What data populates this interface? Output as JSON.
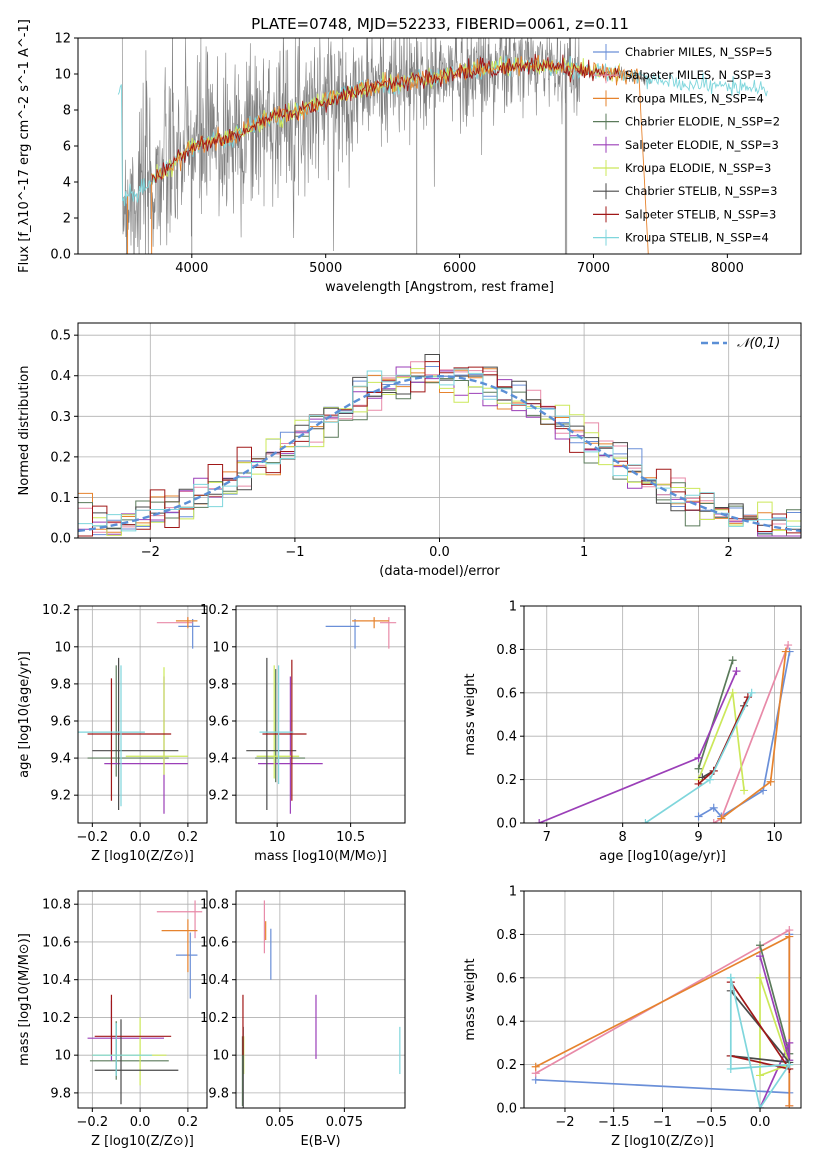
{
  "title": "PLATE=0748, MJD=52233, FIBERID=0061, z=0.11",
  "colors": {
    "chabrier_miles": "#6a8fd8",
    "salpeter_miles": "#e88aa8",
    "kroupa_miles": "#e6832e",
    "chabrier_elodie": "#5a7a5a",
    "salpeter_elodie": "#9b3fb8",
    "kroupa_elodie": "#cce85a",
    "chabrier_stelib": "#4a4a4a",
    "salpeter_stelib": "#a01818",
    "kroupa_stelib": "#7fd6dc",
    "data": "#7f7f7f"
  },
  "chart_data": [
    {
      "id": "spectrum",
      "type": "line",
      "xlabel": "wavelength [Angstrom, rest frame]",
      "ylabel": "Flux [f_λ10^-17 erg cm^-2 s^-1 A^-1]",
      "xlim": [
        3150,
        8550
      ],
      "ylim": [
        0,
        12
      ],
      "xticks": [
        4000,
        5000,
        6000,
        7000,
        8000
      ],
      "yticks": [
        0,
        2,
        4,
        6,
        8,
        10,
        12
      ],
      "grid": false,
      "legend_position": "top-right",
      "legend": [
        "Chabrier MILES, N_SSP=5",
        "Salpeter MILES, N_SSP=3",
        "Kroupa MILES, N_SSP=4",
        "Chabrier ELODIE, N_SSP=2",
        "Salpeter ELODIE, N_SSP=3",
        "Kroupa ELODIE, N_SSP=3",
        "Chabrier STELIB, N_SSP=3",
        "Salpeter STELIB, N_SSP=3",
        "Kroupa STELIB, N_SSP=4"
      ],
      "continuum": [
        [
          3480,
          3.1
        ],
        [
          3600,
          3.4
        ],
        [
          3800,
          4.6
        ],
        [
          3900,
          5.3
        ],
        [
          4000,
          5.9
        ],
        [
          4100,
          6.2
        ],
        [
          4300,
          6.5
        ],
        [
          4500,
          7.3
        ],
        [
          4700,
          7.8
        ],
        [
          4850,
          8.0
        ],
        [
          5000,
          8.6
        ],
        [
          5200,
          9.0
        ],
        [
          5400,
          9.4
        ],
        [
          5600,
          9.6
        ],
        [
          5800,
          9.8
        ],
        [
          6000,
          10.1
        ],
        [
          6200,
          10.3
        ],
        [
          6400,
          10.4
        ],
        [
          6600,
          10.6
        ],
        [
          6800,
          10.3
        ],
        [
          7000,
          10.1
        ],
        [
          7200,
          10.0
        ],
        [
          7400,
          9.7
        ],
        [
          7600,
          9.5
        ],
        [
          7800,
          9.4
        ],
        [
          8000,
          9.3
        ],
        [
          8300,
          9.2
        ]
      ]
    },
    {
      "id": "residuals",
      "type": "histogram",
      "xlabel": "(data-model)/error",
      "ylabel": "Normed distribution",
      "xlim": [
        -2.5,
        2.5
      ],
      "ylim": [
        0,
        0.53
      ],
      "xticks": [
        -2,
        -1,
        0,
        1,
        2
      ],
      "yticks": [
        0.0,
        0.1,
        0.2,
        0.3,
        0.4,
        0.5
      ],
      "grid": true,
      "legend_position": "top-right",
      "legend": [
        "𝒩(0,1)"
      ],
      "bin_width": 0.1
    },
    {
      "id": "age_vs_Z",
      "type": "errorbar",
      "xlabel": "Z [log10(Z/Z⊙)]",
      "ylabel": "age [log10(age/yr)]",
      "xlim": [
        -0.26,
        0.28
      ],
      "ylim": [
        9.05,
        10.22
      ],
      "xticks": [
        -0.2,
        0.0,
        0.2
      ],
      "yticks": [
        9.2,
        9.4,
        9.6,
        9.8,
        10.0,
        10.2
      ],
      "grid": true,
      "points": [
        {
          "model": "chabrier_miles",
          "x": 0.22,
          "xerr": [
            0.06,
            0.03
          ],
          "y": 10.11,
          "yerr": [
            0.12,
            0.04
          ]
        },
        {
          "model": "salpeter_miles",
          "x": 0.2,
          "xerr": [
            0.13,
            0.02
          ],
          "y": 10.13,
          "yerr": [
            0.02,
            0.03
          ]
        },
        {
          "model": "kroupa_miles",
          "x": 0.2,
          "xerr": [
            0.05,
            0.04
          ],
          "y": 10.14,
          "yerr": [
            0.04,
            0.02
          ]
        },
        {
          "model": "chabrier_elodie",
          "x": -0.1,
          "xerr": [
            0.12,
            0.22
          ],
          "y": 9.4,
          "yerr": [
            0.1,
            0.5
          ]
        },
        {
          "model": "salpeter_elodie",
          "x": 0.1,
          "xerr": [
            0.25,
            0.1
          ],
          "y": 9.37,
          "yerr": [
            0.27,
            0.47
          ]
        },
        {
          "model": "kroupa_elodie",
          "x": 0.1,
          "xerr": [
            0.16,
            0.1
          ],
          "y": 9.41,
          "yerr": [
            0.1,
            0.48
          ]
        },
        {
          "model": "chabrier_stelib",
          "x": -0.09,
          "xerr": [
            0.11,
            0.25
          ],
          "y": 9.44,
          "yerr": [
            0.32,
            0.5
          ]
        },
        {
          "model": "salpeter_stelib",
          "x": -0.12,
          "xerr": [
            0.1,
            0.25
          ],
          "y": 9.53,
          "yerr": [
            0.36,
            0.3
          ]
        },
        {
          "model": "kroupa_stelib",
          "x": -0.08,
          "xerr": [
            0.18,
            0.1
          ],
          "y": 9.54,
          "yerr": [
            0.4,
            0.36
          ]
        }
      ]
    },
    {
      "id": "age_vs_mass",
      "type": "errorbar",
      "xlabel": "mass [log10(M/M⊙)]",
      "ylabel": "",
      "xlim": [
        9.72,
        10.87
      ],
      "ylim": [
        9.05,
        10.22
      ],
      "xticks": [
        10.0,
        10.5
      ],
      "yticks": [
        9.2,
        9.4,
        9.6,
        9.8,
        10.0,
        10.2
      ],
      "grid": true,
      "points": [
        {
          "model": "chabrier_miles",
          "x": 10.53,
          "xerr": [
            0.2,
            0.03
          ],
          "y": 10.11,
          "yerr": [
            0.12,
            0.04
          ]
        },
        {
          "model": "salpeter_miles",
          "x": 10.76,
          "xerr": [
            0.06,
            0.05
          ],
          "y": 10.13,
          "yerr": [
            0.14,
            0.03
          ]
        },
        {
          "model": "kroupa_miles",
          "x": 10.66,
          "xerr": [
            0.15,
            0.1
          ],
          "y": 10.14,
          "yerr": [
            0.04,
            0.02
          ]
        },
        {
          "model": "chabrier_elodie",
          "x": 9.99,
          "xerr": [
            0.14,
            0.2
          ],
          "y": 9.4,
          "yerr": [
            0.13,
            0.48
          ]
        },
        {
          "model": "salpeter_elodie",
          "x": 10.09,
          "xerr": [
            0.22,
            0.22
          ],
          "y": 9.37,
          "yerr": [
            0.27,
            0.47
          ]
        },
        {
          "model": "kroupa_elodie",
          "x": 9.98,
          "xerr": [
            0.12,
            0.17
          ],
          "y": 9.41,
          "yerr": [
            0.12,
            0.49
          ]
        },
        {
          "model": "chabrier_stelib",
          "x": 9.93,
          "xerr": [
            0.14,
            0.2
          ],
          "y": 9.44,
          "yerr": [
            0.32,
            0.5
          ]
        },
        {
          "model": "salpeter_stelib",
          "x": 10.1,
          "xerr": [
            0.2,
            0.1
          ],
          "y": 9.53,
          "yerr": [
            0.36,
            0.4
          ]
        },
        {
          "model": "kroupa_stelib",
          "x": 10.01,
          "xerr": [
            0.13,
            0.1
          ],
          "y": 9.54,
          "yerr": [
            0.28,
            0.36
          ]
        }
      ]
    },
    {
      "id": "weight_vs_age",
      "type": "line",
      "xlabel": "age [log10(age/yr)]",
      "ylabel": "mass weight",
      "xlim": [
        6.7,
        10.35
      ],
      "ylim": [
        0,
        1.0
      ],
      "xticks": [
        7,
        8,
        9,
        10
      ],
      "yticks": [
        0.0,
        0.2,
        0.4,
        0.6,
        0.8,
        1.0
      ],
      "grid": true,
      "series": [
        {
          "model": "chabrier_miles",
          "x": [
            9.0,
            9.2,
            9.3,
            9.85,
            10.2
          ],
          "y": [
            0.03,
            0.07,
            0.03,
            0.15,
            0.79
          ]
        },
        {
          "model": "salpeter_miles",
          "x": [
            9.2,
            9.3,
            10.18
          ],
          "y": [
            0.0,
            0.02,
            0.82
          ]
        },
        {
          "model": "kroupa_miles",
          "x": [
            9.3,
            9.95,
            10.15
          ],
          "y": [
            0.02,
            0.19,
            0.79
          ]
        },
        {
          "model": "chabrier_elodie",
          "x": [
            9.0,
            9.45
          ],
          "y": [
            0.25,
            0.75
          ]
        },
        {
          "model": "salpeter_elodie",
          "x": [
            6.9,
            9.0,
            9.5
          ],
          "y": [
            0.0,
            0.3,
            0.7
          ]
        },
        {
          "model": "kroupa_elodie",
          "x": [
            9.0,
            9.45,
            9.6
          ],
          "y": [
            0.2,
            0.6,
            0.15
          ]
        },
        {
          "model": "chabrier_stelib",
          "x": [
            9.05,
            9.2,
            9.6
          ],
          "y": [
            0.21,
            0.24,
            0.54
          ]
        },
        {
          "model": "salpeter_stelib",
          "x": [
            9.0,
            9.2,
            9.65
          ],
          "y": [
            0.18,
            0.24,
            0.58
          ]
        },
        {
          "model": "kroupa_stelib",
          "x": [
            8.3,
            9.15,
            9.7
          ],
          "y": [
            0.0,
            0.2,
            0.6
          ]
        }
      ]
    },
    {
      "id": "mass_vs_Z",
      "type": "errorbar",
      "xlabel": "Z [log10(Z/Z⊙)]",
      "ylabel": "mass [log10(M/M⊙)]",
      "xlim": [
        -0.26,
        0.28
      ],
      "ylim": [
        9.72,
        10.87
      ],
      "xticks": [
        -0.2,
        0.0,
        0.2
      ],
      "yticks": [
        9.8,
        10.0,
        10.2,
        10.4,
        10.6,
        10.8
      ],
      "grid": true,
      "points": [
        {
          "model": "chabrier_miles",
          "x": 0.21,
          "xerr": [
            0.06,
            0.03
          ],
          "y": 10.53,
          "yerr": [
            0.23,
            0.12
          ]
        },
        {
          "model": "salpeter_miles",
          "x": 0.23,
          "xerr": [
            0.16,
            0.03
          ],
          "y": 10.76,
          "yerr": [
            0.14,
            0.06
          ]
        },
        {
          "model": "kroupa_miles",
          "x": 0.2,
          "xerr": [
            0.11,
            0.04
          ],
          "y": 10.66,
          "yerr": [
            0.22,
            0.06
          ]
        },
        {
          "model": "chabrier_elodie",
          "x": -0.1,
          "xerr": [
            0.11,
            0.22
          ],
          "y": 9.97,
          "yerr": [
            0.1,
            0.21
          ]
        },
        {
          "model": "salpeter_elodie",
          "x": -0.12,
          "xerr": [
            0.1,
            0.22
          ],
          "y": 10.09,
          "yerr": [
            0.12,
            0.2
          ]
        },
        {
          "model": "kroupa_elodie",
          "x": 0.0,
          "xerr": [
            0.2,
            0.11
          ],
          "y": 10.0,
          "yerr": [
            0.16,
            0.2
          ]
        },
        {
          "model": "chabrier_stelib",
          "x": -0.08,
          "xerr": [
            0.11,
            0.24
          ],
          "y": 9.92,
          "yerr": [
            0.18,
            0.27
          ]
        },
        {
          "model": "salpeter_stelib",
          "x": -0.12,
          "xerr": [
            0.07,
            0.25
          ],
          "y": 10.1,
          "yerr": [
            0.1,
            0.22
          ]
        },
        {
          "model": "kroupa_stelib",
          "x": -0.1,
          "xerr": [
            0.1,
            0.15
          ],
          "y": 10.0,
          "yerr": [
            0.11,
            0.17
          ]
        }
      ]
    },
    {
      "id": "mass_vs_EBV",
      "type": "errorbar",
      "xlabel": "E(B-V)",
      "ylabel": "",
      "xlim": [
        0.033,
        0.0985
      ],
      "ylim": [
        9.72,
        10.87
      ],
      "xticks": [
        0.05,
        0.075
      ],
      "yticks": [
        9.8,
        10.0,
        10.2,
        10.4,
        10.6,
        10.8
      ],
      "grid": true,
      "points": [
        {
          "model": "chabrier_miles",
          "x": 0.0465,
          "xerr": [
            0,
            0
          ],
          "y": 10.55,
          "yerr": [
            0.15,
            0.12
          ]
        },
        {
          "model": "salpeter_miles",
          "x": 0.044,
          "xerr": [
            0,
            0
          ],
          "y": 10.74,
          "yerr": [
            0.2,
            0.08
          ]
        },
        {
          "model": "kroupa_miles",
          "x": 0.0445,
          "xerr": [
            0,
            0
          ],
          "y": 10.66,
          "yerr": [
            0.05,
            0.05
          ]
        },
        {
          "model": "chabrier_elodie",
          "x": 0.0355,
          "xerr": [
            0,
            0
          ],
          "y": 10.0,
          "yerr": [
            0.27,
            0.1
          ]
        },
        {
          "model": "salpeter_elodie",
          "x": 0.064,
          "xerr": [
            0,
            0
          ],
          "y": 10.15,
          "yerr": [
            0.17,
            0.17
          ]
        },
        {
          "model": "kroupa_elodie",
          "x": 0.036,
          "xerr": [
            0,
            0
          ],
          "y": 10.0,
          "yerr": [
            0.1,
            0.1
          ]
        },
        {
          "model": "chabrier_stelib",
          "x": 0.0358,
          "xerr": [
            0,
            0
          ],
          "y": 10.0,
          "yerr": [
            0.28,
            0.15
          ]
        },
        {
          "model": "salpeter_stelib",
          "x": 0.0357,
          "xerr": [
            0,
            0
          ],
          "y": 10.1,
          "yerr": [
            0.1,
            0.22
          ]
        },
        {
          "model": "kroupa_stelib",
          "x": 0.0965,
          "xerr": [
            0,
            0
          ],
          "y": 10.0,
          "yerr": [
            0.1,
            0.15
          ]
        }
      ]
    },
    {
      "id": "weight_vs_Z",
      "type": "line",
      "xlabel": "Z [log10(Z/Z⊙)]",
      "ylabel": "mass weight",
      "xlim": [
        -2.42,
        0.42
      ],
      "ylim": [
        0,
        1.0
      ],
      "xticks": [
        -2.0,
        -1.5,
        -1.0,
        -0.5,
        0.0
      ],
      "yticks": [
        0.0,
        0.2,
        0.4,
        0.6,
        0.8,
        1.0
      ],
      "grid": true,
      "series": [
        {
          "model": "chabrier_miles",
          "x": [
            -2.3,
            0.3,
            0.3
          ],
          "y": [
            0.13,
            0.07,
            0.8
          ]
        },
        {
          "model": "salpeter_miles",
          "x": [
            -2.3,
            0.3,
            0.3
          ],
          "y": [
            0.16,
            0.82,
            0.01
          ]
        },
        {
          "model": "kroupa_miles",
          "x": [
            -2.3,
            0.3,
            0.3
          ],
          "y": [
            0.19,
            0.79,
            0.01
          ]
        },
        {
          "model": "chabrier_elodie",
          "x": [
            0.0,
            0.3
          ],
          "y": [
            0.75,
            0.25
          ]
        },
        {
          "model": "salpeter_elodie",
          "x": [
            0.0,
            0.3,
            0.3,
            0.0
          ],
          "y": [
            0.7,
            0.22,
            0.3,
            0.0
          ]
        },
        {
          "model": "kroupa_elodie",
          "x": [
            0.0,
            0.3,
            0.0,
            0.0
          ],
          "y": [
            0.6,
            0.2,
            0.15,
            0.6
          ]
        },
        {
          "model": "chabrier_stelib",
          "x": [
            -0.3,
            0.3,
            -0.3
          ],
          "y": [
            0.54,
            0.21,
            0.24
          ]
        },
        {
          "model": "salpeter_stelib",
          "x": [
            -0.3,
            0.3,
            -0.3
          ],
          "y": [
            0.58,
            0.18,
            0.24
          ]
        },
        {
          "model": "kroupa_stelib",
          "x": [
            -0.3,
            0.0,
            0.3,
            -0.3,
            -0.3
          ],
          "y": [
            0.6,
            0.0,
            0.2,
            0.18,
            0.6
          ]
        }
      ]
    }
  ]
}
